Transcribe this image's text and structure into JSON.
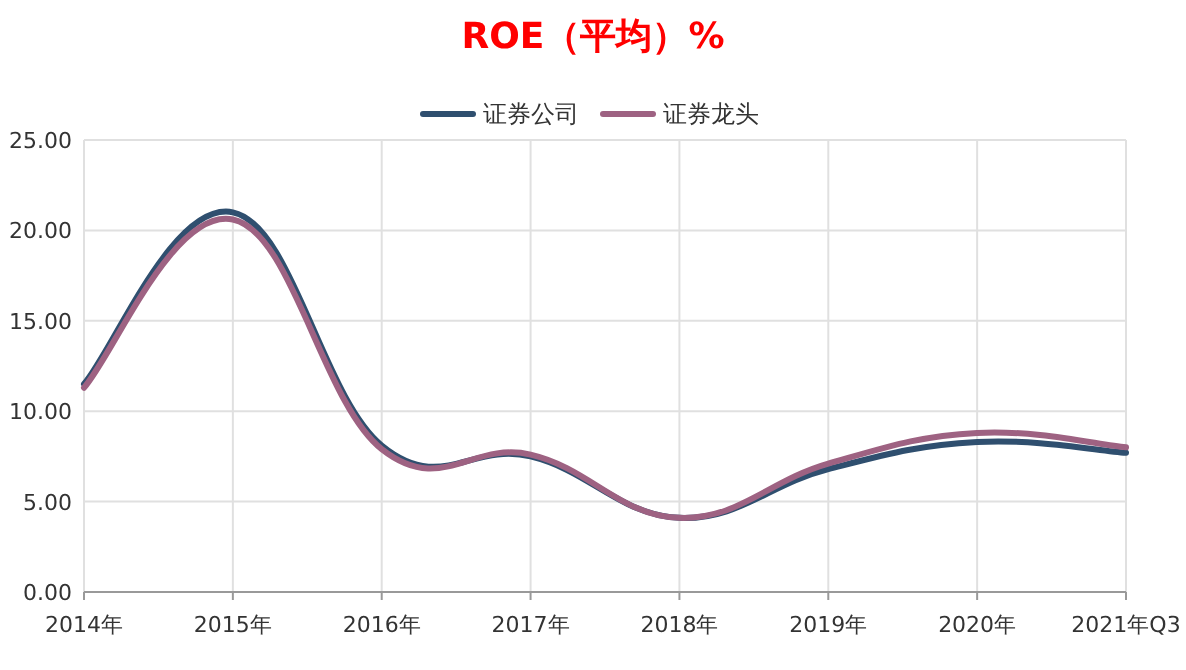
{
  "chart_data": {
    "type": "line",
    "title": "ROE（平均）%",
    "categories": [
      "2014年",
      "2015年",
      "2016年",
      "2017年",
      "2018年",
      "2019年",
      "2020年",
      "2021年Q3"
    ],
    "series": [
      {
        "name": "证券公司",
        "color": "#2f4f6f",
        "values": [
          11.5,
          21.0,
          8.1,
          7.5,
          4.1,
          6.8,
          8.3,
          7.7
        ]
      },
      {
        "name": "证券龙头",
        "color": "#9e6282",
        "values": [
          11.3,
          20.6,
          7.9,
          7.6,
          4.1,
          7.1,
          8.8,
          8.0
        ]
      }
    ],
    "ylim": [
      0,
      25
    ],
    "yticks": [
      {
        "value": 0,
        "label": "0.00"
      },
      {
        "value": 5,
        "label": "5.00"
      },
      {
        "value": 10,
        "label": "10.00"
      },
      {
        "value": 15,
        "label": "15.00"
      },
      {
        "value": 20,
        "label": "20.00"
      },
      {
        "value": 25,
        "label": "25.00"
      }
    ],
    "grid": true,
    "legend": "top"
  }
}
